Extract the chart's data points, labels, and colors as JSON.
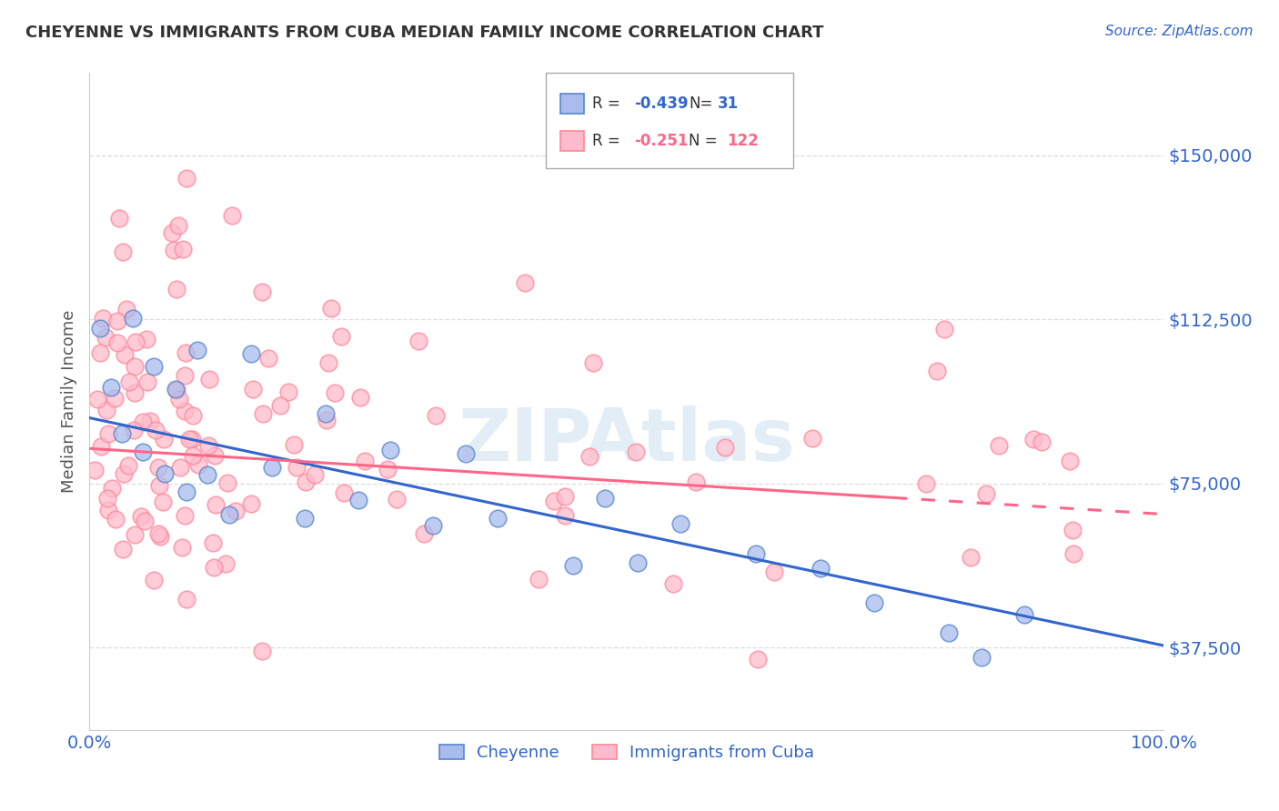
{
  "title": "CHEYENNE VS IMMIGRANTS FROM CUBA MEDIAN FAMILY INCOME CORRELATION CHART",
  "source_text": "Source: ZipAtlas.com",
  "ylabel": "Median Family Income",
  "xlim": [
    0.0,
    1.0
  ],
  "ylim": [
    18750,
    168750
  ],
  "yticks": [
    37500,
    75000,
    112500,
    150000
  ],
  "ytick_labels": [
    "$37,500",
    "$75,000",
    "$112,500",
    "$150,000"
  ],
  "xtick_labels": [
    "0.0%",
    "100.0%"
  ],
  "legend_labels": [
    "Cheyenne",
    "Immigrants from Cuba"
  ],
  "r_cheyenne": "-0.439",
  "n_cheyenne": "31",
  "r_cuba": "-0.251",
  "n_cuba": "122",
  "color_cheyenne_fill": "#AABBEE",
  "color_cheyenne_edge": "#5588CC",
  "color_cuba_fill": "#FFBBCC",
  "color_cuba_edge": "#FF8899",
  "color_cheyenne_line": "#3366CC",
  "color_cuba_line": "#FF6688",
  "watermark": "ZIPAtlas",
  "background_color": "#FFFFFF",
  "grid_color": "#CCCCCC",
  "title_color": "#333333",
  "axis_label_color": "#555555",
  "tick_label_color": "#3366CC",
  "legend_box_color": "#AABBEE",
  "legend_box_color2": "#FFBBCC"
}
